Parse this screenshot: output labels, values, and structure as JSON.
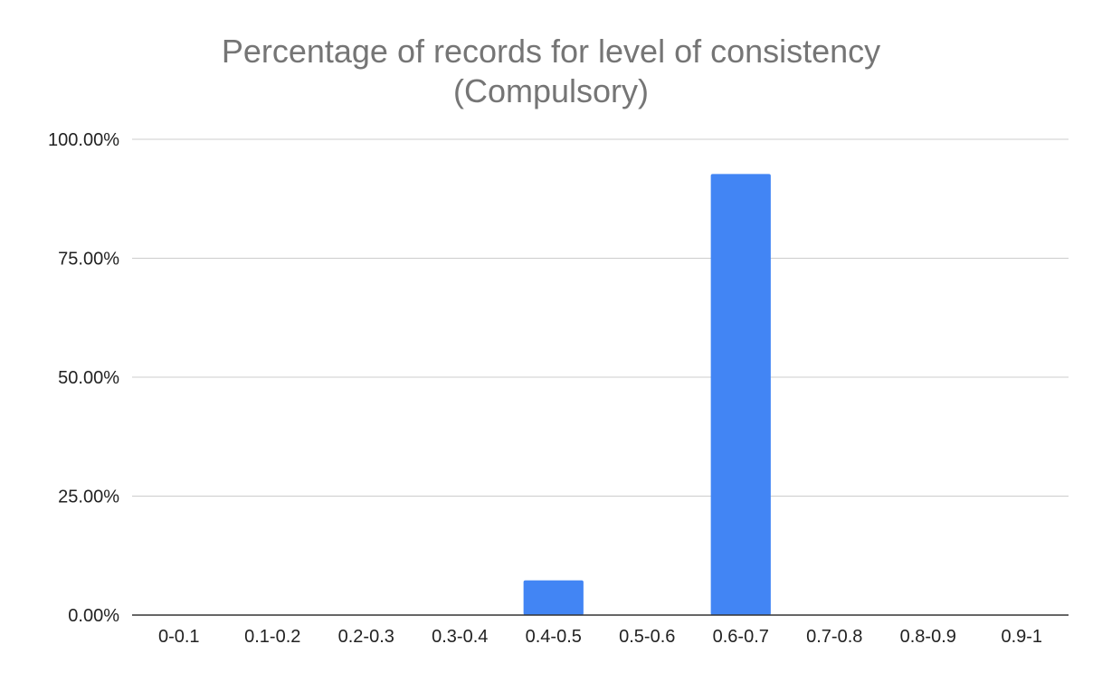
{
  "chart_data": {
    "type": "bar",
    "title_lines": [
      "Percentage of records for level of consistency",
      "(Compulsory)"
    ],
    "xlabel": "",
    "ylabel": "",
    "categories": [
      "0-0.1",
      "0.1-0.2",
      "0.2-0.3",
      "0.3-0.4",
      "0.4-0.5",
      "0.5-0.6",
      "0.6-0.7",
      "0.7-0.8",
      "0.8-0.9",
      "0.9-1"
    ],
    "values": [
      0,
      0,
      0,
      0,
      7.3,
      0,
      92.7,
      0,
      0,
      0
    ],
    "ylim": [
      0,
      100
    ],
    "yticks": [
      0,
      25,
      50,
      75,
      100
    ],
    "ytick_labels": [
      "0.00%",
      "25.00%",
      "50.00%",
      "75.00%",
      "100.00%"
    ],
    "grid": true,
    "legend": "none",
    "colors": {
      "bar": "#4285f4",
      "grid": "#cccccc",
      "axis": "#333333",
      "title": "#757575",
      "tick_label": "#222222"
    }
  }
}
